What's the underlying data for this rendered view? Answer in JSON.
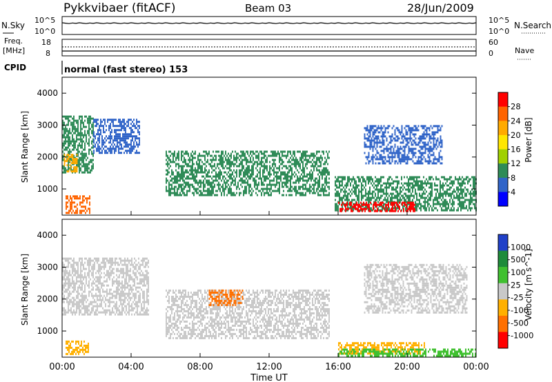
{
  "header": {
    "station": "Pykkvibaer (fitACF)",
    "beam": "Beam 03",
    "date": "28/Jun/2009"
  },
  "noise_panel": {
    "left_label": "N.Sky",
    "right_label": "N.Search",
    "left_ticks": [
      "10^5",
      "10^0"
    ],
    "right_ticks": [
      "10^5",
      "10^0"
    ]
  },
  "freq_panel": {
    "left_label_line1": "Freq.",
    "left_label_line2": "[MHz]",
    "right_label": "Nave",
    "left_ticks": [
      "18",
      "8"
    ],
    "right_ticks": [
      "60",
      "0"
    ]
  },
  "cpid": {
    "label": "CPID",
    "mode_text": "normal (fast stereo) 153"
  },
  "chart_data": [
    {
      "type": "heatmap",
      "name": "power",
      "ylabel": "Slant Range [km]",
      "y_ticks": [
        "4000",
        "3000",
        "2000",
        "1000"
      ],
      "ylim": [
        180,
        4500
      ],
      "colorbar_label": "Power [dB]",
      "colorbar_ticks": [
        "28",
        "24",
        "20",
        "16",
        "12",
        "8",
        "4"
      ],
      "colorbar_colors": [
        "#ff0000",
        "#ff6400",
        "#ffaa00",
        "#ffe600",
        "#a0d000",
        "#2e8b57",
        "#3064c8",
        "#0000ff"
      ],
      "echo_regions": [
        {
          "t_start": 0.0,
          "t_end": 1.8,
          "r_low": 1500,
          "r_high": 3300,
          "color": "#2e8b57"
        },
        {
          "t_start": 0.1,
          "t_end": 0.9,
          "r_low": 1550,
          "r_high": 2100,
          "color": "#ffaa00"
        },
        {
          "t_start": 0.2,
          "t_end": 1.6,
          "r_low": 250,
          "r_high": 800,
          "color": "#ff6400"
        },
        {
          "t_start": 1.8,
          "t_end": 4.5,
          "r_low": 2100,
          "r_high": 3200,
          "color": "#3064c8"
        },
        {
          "t_start": 6.0,
          "t_end": 15.5,
          "r_low": 800,
          "r_high": 2200,
          "color": "#2e8b57"
        },
        {
          "t_start": 15.8,
          "t_end": 24.0,
          "r_low": 300,
          "r_high": 1400,
          "color": "#2e8b57"
        },
        {
          "t_start": 16.0,
          "t_end": 20.5,
          "r_low": 280,
          "r_high": 600,
          "color": "#ff0000"
        },
        {
          "t_start": 17.5,
          "t_end": 22.0,
          "r_low": 1800,
          "r_high": 3000,
          "color": "#3064c8"
        }
      ]
    },
    {
      "type": "heatmap",
      "name": "velocity",
      "xlabel": "Time UT",
      "ylabel": "Slant Range [km]",
      "x_ticks": [
        "00:00",
        "04:00",
        "08:00",
        "12:00",
        "16:00",
        "20:00",
        "00:00"
      ],
      "x_tick_hours": [
        0,
        4,
        8,
        12,
        16,
        20,
        24
      ],
      "y_ticks": [
        "4000",
        "3000",
        "2000",
        "1000"
      ],
      "ylim": [
        180,
        4500
      ],
      "colorbar_label": "Velocity [m s^-1]",
      "colorbar_ticks": [
        "1000",
        "500",
        "100",
        "25",
        "-25",
        "-100",
        "-500",
        "-1000"
      ],
      "colorbar_colors": [
        "#2040c8",
        "#1e8b3a",
        "#40c030",
        "#c8c8c8",
        "#ffb000",
        "#ff7000",
        "#ff0000"
      ],
      "echo_regions": [
        {
          "t_start": 0.0,
          "t_end": 5.0,
          "r_low": 1500,
          "r_high": 3300,
          "color": "#c8c8c8"
        },
        {
          "t_start": 0.2,
          "t_end": 1.5,
          "r_low": 300,
          "r_high": 700,
          "color": "#ffb000"
        },
        {
          "t_start": 6.0,
          "t_end": 15.5,
          "r_low": 800,
          "r_high": 2300,
          "color": "#c8c8c8"
        },
        {
          "t_start": 8.5,
          "t_end": 10.5,
          "r_low": 1800,
          "r_high": 2300,
          "color": "#ff7000"
        },
        {
          "t_start": 16.0,
          "t_end": 21.0,
          "r_low": 300,
          "r_high": 650,
          "color": "#ffb000"
        },
        {
          "t_start": 16.0,
          "t_end": 24.0,
          "r_low": 250,
          "r_high": 450,
          "color": "#40c030"
        },
        {
          "t_start": 17.5,
          "t_end": 23.5,
          "r_low": 1600,
          "r_high": 3100,
          "color": "#c8c8c8"
        }
      ]
    }
  ]
}
